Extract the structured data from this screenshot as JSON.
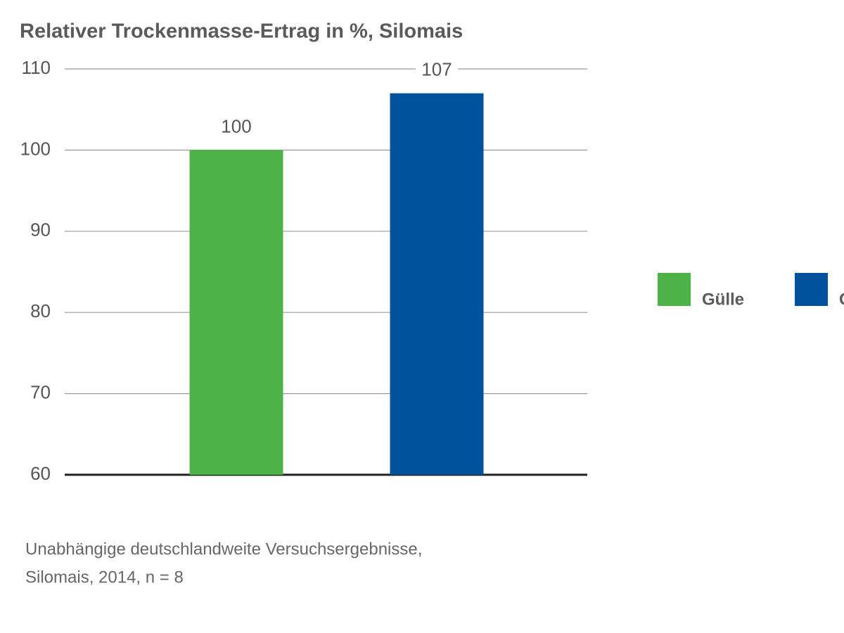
{
  "chart_data": {
    "type": "bar",
    "title": "Relativer Trockenmasse-Ertrag in %, Silomais",
    "series": [
      {
        "name": "Gülle",
        "color": "#4db248",
        "values": [
          100
        ]
      },
      {
        "name": "C",
        "color": "#00529c",
        "values": [
          107
        ]
      }
    ],
    "ylim": [
      60,
      110
    ],
    "yticks": [
      60,
      70,
      80,
      90,
      100,
      110
    ],
    "grid": true,
    "legend": "right",
    "note": [
      "Unabhängige deutschlandweite Versuchsergebnisse,",
      "Silomais, 2014, n = 8"
    ]
  }
}
